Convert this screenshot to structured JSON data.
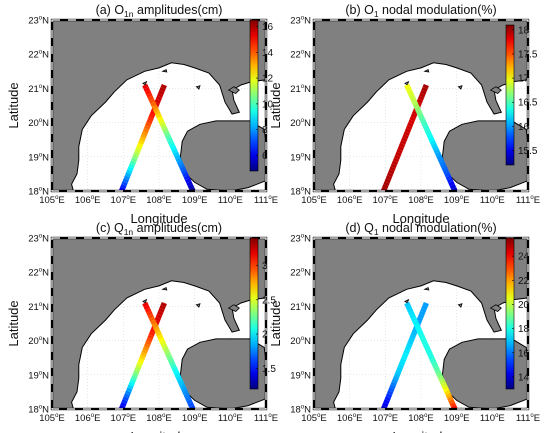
{
  "chart_data": [
    {
      "type": "map",
      "panel_label": "(a)",
      "title_parts": [
        "O",
        "1n",
        " amplitudes(cm)"
      ],
      "xlabel": "Longitude",
      "ylabel": "Latitude",
      "x_ticks": [
        "105",
        "106",
        "107",
        "108",
        "109",
        "110",
        "111"
      ],
      "y_ticks": [
        "18",
        "19",
        "20",
        "21",
        "22",
        "23"
      ],
      "x_suffix": "E",
      "y_suffix": "N",
      "xlim": [
        105,
        111
      ],
      "ylim": [
        18,
        23
      ],
      "colorbar": {
        "min": 4.8,
        "max": 16.5,
        "ticks": [
          "6",
          "8",
          "10",
          "12",
          "14",
          "16"
        ],
        "tick_values": [
          6,
          8,
          10,
          12,
          14,
          16
        ]
      },
      "tracks": [
        {
          "start": [
            106.95,
            18.0
          ],
          "end": [
            108.15,
            21.1
          ],
          "values": [
            6.0,
            8.5,
            11.0,
            13.0,
            14.5,
            15.5,
            16.0
          ]
        },
        {
          "start": [
            107.6,
            21.1
          ],
          "end": [
            108.95,
            18.0
          ],
          "values": [
            15.5,
            14.0,
            12.0,
            10.0,
            8.5,
            7.0,
            5.0
          ]
        }
      ]
    },
    {
      "type": "map",
      "panel_label": "(b)",
      "title_parts": [
        "O",
        "1",
        " nodal modulation(%)"
      ],
      "xlabel": "Longitude",
      "ylabel": "Latitude",
      "x_ticks": [
        "105",
        "106",
        "107",
        "108",
        "109",
        "110",
        "111"
      ],
      "y_ticks": [
        "18",
        "19",
        "20",
        "21",
        "22",
        "23"
      ],
      "x_suffix": "E",
      "y_suffix": "N",
      "xlim": [
        105,
        111
      ],
      "ylim": [
        18,
        23
      ],
      "colorbar": {
        "min": 15.2,
        "max": 18.1,
        "ticks": [
          "15.5",
          "16",
          "16.5",
          "17",
          "17.5",
          "18"
        ],
        "tick_values": [
          15.5,
          16,
          16.5,
          17,
          17.5,
          18
        ]
      },
      "tracks": [
        {
          "start": [
            106.95,
            18.0
          ],
          "end": [
            108.15,
            21.1
          ],
          "values": [
            18.0,
            17.95,
            17.9,
            17.9,
            17.85,
            17.9,
            18.0
          ]
        },
        {
          "start": [
            107.6,
            21.1
          ],
          "end": [
            108.95,
            18.0
          ],
          "values": [
            17.0,
            16.8,
            16.5,
            16.3,
            16.0,
            15.8,
            15.4
          ]
        }
      ]
    },
    {
      "type": "map",
      "panel_label": "(c)",
      "title_parts": [
        "Q",
        "1n",
        " amplitudes(cm)"
      ],
      "xlabel": "Longitude",
      "ylabel": "Latitude",
      "x_ticks": [
        "105",
        "106",
        "107",
        "108",
        "109",
        "110",
        "111"
      ],
      "y_ticks": [
        "18",
        "19",
        "20",
        "21",
        "22",
        "23"
      ],
      "x_suffix": "E",
      "y_suffix": "N",
      "xlim": [
        105,
        111
      ],
      "ylim": [
        18,
        23
      ],
      "colorbar": {
        "min": 1.2,
        "max": 3.4,
        "ticks": [
          "1.5",
          "2",
          "2.5",
          "3"
        ],
        "tick_values": [
          1.5,
          2,
          2.5,
          3
        ]
      },
      "tracks": [
        {
          "start": [
            106.95,
            18.0
          ],
          "end": [
            108.15,
            21.1
          ],
          "values": [
            1.4,
            1.8,
            2.3,
            2.7,
            3.0,
            3.2,
            3.3
          ]
        },
        {
          "start": [
            107.6,
            21.1
          ],
          "end": [
            108.95,
            18.0
          ],
          "values": [
            3.2,
            2.9,
            2.6,
            2.3,
            2.0,
            1.8,
            1.6
          ]
        }
      ]
    },
    {
      "type": "map",
      "panel_label": "(d)",
      "title_parts": [
        "Q",
        "1",
        " nodal modulation(%)"
      ],
      "xlabel": "Longitude",
      "ylabel": "Latitude",
      "x_ticks": [
        "105",
        "106",
        "107",
        "108",
        "109",
        "110",
        "111"
      ],
      "y_ticks": [
        "18",
        "19",
        "20",
        "21",
        "22",
        "23"
      ],
      "x_suffix": "E",
      "y_suffix": "N",
      "xlim": [
        105,
        111
      ],
      "ylim": [
        18,
        23
      ],
      "colorbar": {
        "min": 13,
        "max": 25.5,
        "ticks": [
          "14",
          "16",
          "18",
          "20",
          "22",
          "24"
        ],
        "tick_values": [
          14,
          16,
          18,
          20,
          22,
          24
        ]
      },
      "tracks": [
        {
          "start": [
            106.95,
            18.0
          ],
          "end": [
            108.15,
            21.1
          ],
          "values": [
            14.0,
            15.5,
            17.0,
            17.5,
            17.0,
            16.5,
            16.5
          ]
        },
        {
          "start": [
            107.6,
            21.1
          ],
          "end": [
            108.95,
            18.0
          ],
          "values": [
            17.0,
            17.5,
            18.0,
            18.0,
            19.0,
            21.0,
            24.0
          ]
        }
      ]
    }
  ]
}
